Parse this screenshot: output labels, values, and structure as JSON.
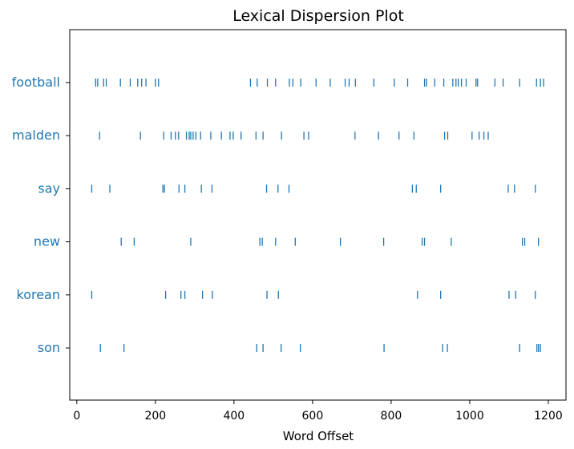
{
  "chart_data": {
    "type": "scatter",
    "title": "Lexical Dispersion Plot",
    "xlabel": "Word Offset",
    "ylabel": "",
    "xlim": [
      -18,
      1245
    ],
    "xticks": [
      0,
      200,
      400,
      600,
      800,
      1000,
      1200
    ],
    "grid": false,
    "color": "#1f77b4",
    "series": [
      {
        "name": "football",
        "values": [
          48,
          53,
          68,
          75,
          111,
          136,
          155,
          165,
          176,
          200,
          208,
          442,
          459,
          485,
          506,
          541,
          550,
          570,
          609,
          645,
          683,
          693,
          709,
          756,
          808,
          842,
          885,
          890,
          911,
          934,
          957,
          965,
          971,
          979,
          991,
          1016,
          1020,
          1064,
          1085,
          1127,
          1170,
          1180,
          1188
        ]
      },
      {
        "name": "malden",
        "values": [
          58,
          162,
          221,
          240,
          251,
          259,
          279,
          286,
          290,
          296,
          303,
          315,
          341,
          368,
          390,
          398,
          418,
          456,
          474,
          521,
          578,
          590,
          708,
          768,
          820,
          858,
          936,
          944,
          1006,
          1024,
          1036,
          1047
        ]
      },
      {
        "name": "say",
        "values": [
          38,
          84,
          219,
          223,
          260,
          275,
          317,
          344,
          483,
          512,
          540,
          854,
          864,
          926,
          1098,
          1114,
          1167
        ]
      },
      {
        "name": "new",
        "values": [
          113,
          146,
          290,
          466,
          472,
          506,
          556,
          671,
          781,
          879,
          885,
          953,
          1134,
          1140,
          1175
        ]
      },
      {
        "name": "korean",
        "values": [
          38,
          226,
          265,
          275,
          320,
          345,
          484,
          513,
          867,
          926,
          1100,
          1117,
          1167
        ]
      },
      {
        "name": "son",
        "values": [
          60,
          120,
          458,
          474,
          520,
          569,
          782,
          931,
          943,
          1127,
          1171,
          1175,
          1180
        ]
      }
    ]
  }
}
